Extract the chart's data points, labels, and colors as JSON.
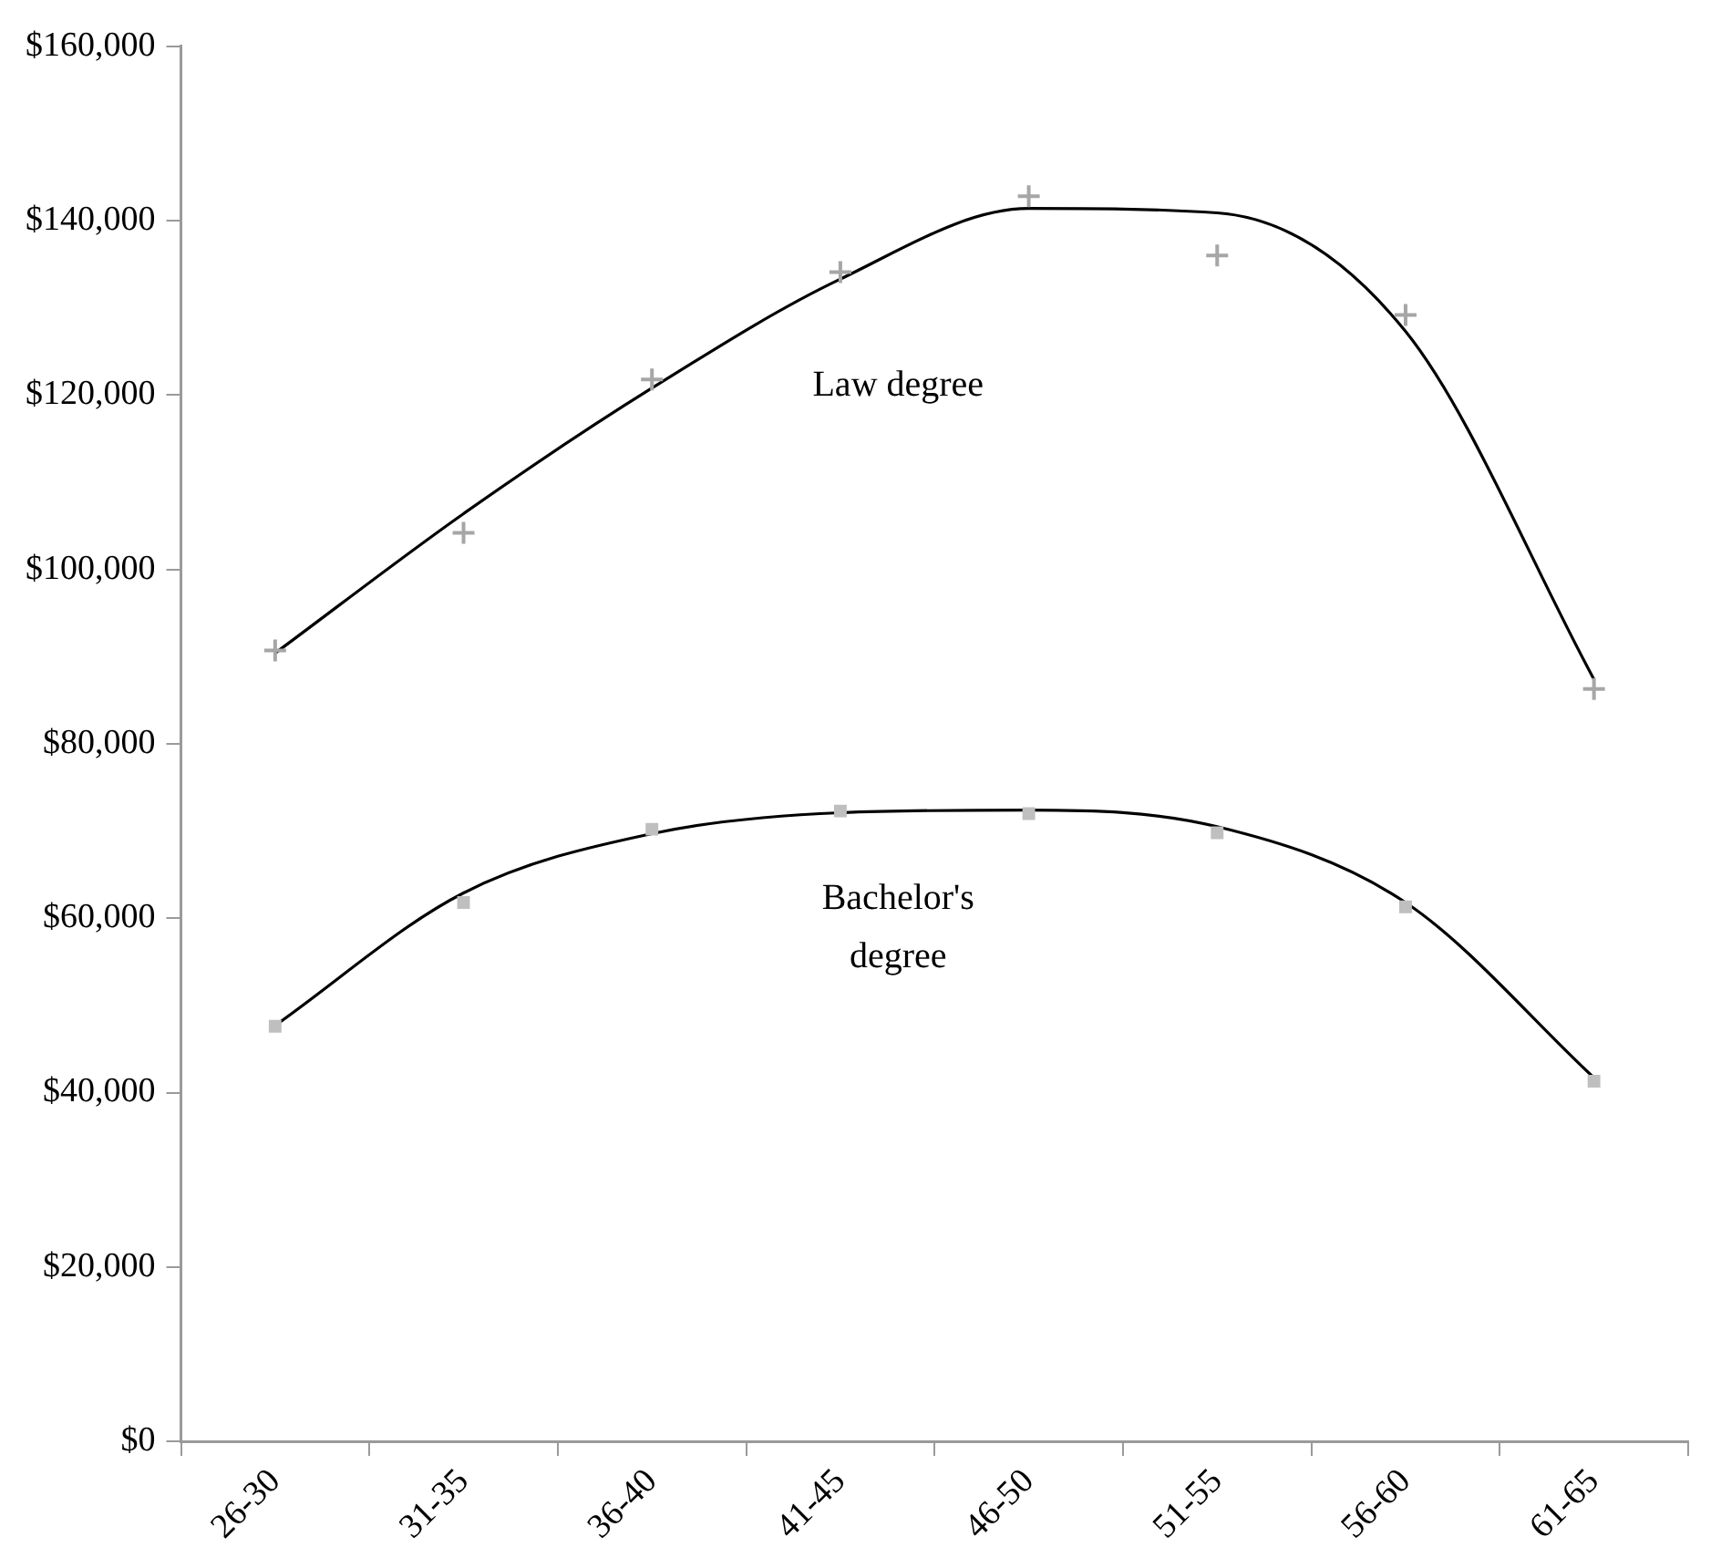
{
  "chart_data": {
    "type": "line",
    "categories": [
      "26-30",
      "31-35",
      "36-40",
      "41-45",
      "46-50",
      "51-55",
      "56-60",
      "61-65"
    ],
    "series": [
      {
        "type": "scatter",
        "x": [
          "26-30",
          "31-35",
          "36-40",
          "41-45",
          "46-50",
          "51-55",
          "56-60",
          "61-65"
        ],
        "marker": "cross",
        "color": "#a6a6a6",
        "values": [
          90700,
          104200,
          121800,
          134100,
          142800,
          136000,
          129200,
          86300
        ]
      },
      {
        "type": "line",
        "name": "Law degree",
        "color": "#000000",
        "marker": "none",
        "values": [
          90400,
          106400,
          120800,
          133300,
          141400,
          140900,
          127300,
          87400
        ]
      },
      {
        "type": "scatter",
        "x": [
          "26-30",
          "31-35",
          "36-40",
          "41-45",
          "46-50",
          "51-55",
          "56-60",
          "61-65"
        ],
        "marker": "square",
        "color": "#bfbfbf",
        "values": [
          47600,
          61800,
          70200,
          72300,
          72000,
          69800,
          61300,
          41300
        ]
      },
      {
        "type": "line",
        "name": "Bachelor's degree",
        "color": "#000000",
        "marker": "none",
        "values": [
          47700,
          62900,
          69700,
          72100,
          72400,
          70500,
          61800,
          41700
        ]
      }
    ],
    "ylim": [
      0,
      160000
    ],
    "yticks": [
      {
        "value": 0,
        "label": "$0"
      },
      {
        "value": 20000,
        "label": "$20,000"
      },
      {
        "value": 40000,
        "label": "$40,000"
      },
      {
        "value": 60000,
        "label": "$60,000"
      },
      {
        "value": 80000,
        "label": "$80,000"
      },
      {
        "value": 100000,
        "label": "$100,000"
      },
      {
        "value": 120000,
        "label": "$120,000"
      },
      {
        "value": 140000,
        "label": "$140,000"
      },
      {
        "value": 160000,
        "label": "$160,000"
      }
    ],
    "grid": false,
    "legend": false
  }
}
